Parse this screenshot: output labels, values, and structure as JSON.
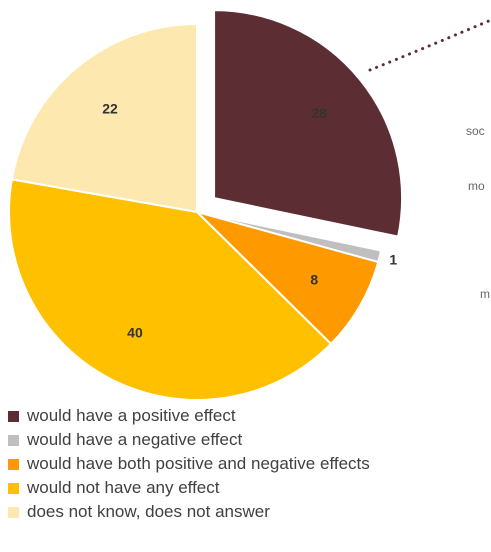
{
  "chart_data": {
    "type": "pie",
    "title": "",
    "slices": [
      {
        "label": "would have a positive effect",
        "value": 28,
        "color": "#5c2d33",
        "exploded": true
      },
      {
        "label": "would have a negative effect",
        "value": 1,
        "color": "#bfbfbf",
        "exploded": false
      },
      {
        "label": "would have both positive and negative effects",
        "value": 8,
        "color": "#ff9900",
        "exploded": false
      },
      {
        "label": "would not have any effect",
        "value": 40,
        "color": "#ffc000",
        "exploded": false
      },
      {
        "label": "does not know, does not answer",
        "value": 22,
        "color": "#fde9b0",
        "exploded": false
      }
    ],
    "legend_position": "bottom-left",
    "start_angle_deg": 0,
    "direction": "clockwise"
  },
  "side_fragments": [
    "soc",
    "mo",
    "m"
  ],
  "legend": {
    "items": [
      {
        "label": "would have a positive effect",
        "color": "#5c2d33"
      },
      {
        "label": "would have a negative effect",
        "color": "#bfbfbf"
      },
      {
        "label": "would have both positive and negative effects",
        "color": "#ff9900"
      },
      {
        "label": "would not have any effect",
        "color": "#ffc000"
      },
      {
        "label": "does not know, does not answer",
        "color": "#fde9b0"
      }
    ]
  }
}
